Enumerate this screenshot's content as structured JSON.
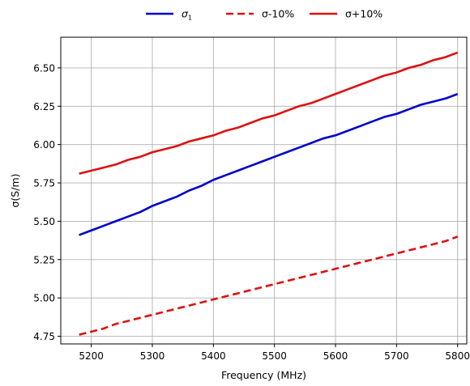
{
  "chart_data": {
    "type": "line",
    "xlabel": "Frequency (MHz)",
    "ylabel": "σ(S/m)",
    "xlim": [
      5150,
      5815
    ],
    "ylim": [
      4.7,
      6.7
    ],
    "grid": true,
    "legend_position": "top-center, above the plot",
    "x_ticks": [
      5200,
      5300,
      5400,
      5500,
      5600,
      5700,
      5800
    ],
    "x_tick_labels": [
      "5200",
      "5300",
      "5400",
      "5500",
      "5600",
      "5700",
      "5800"
    ],
    "y_ticks": [
      4.75,
      5.0,
      5.25,
      5.5,
      5.75,
      6.0,
      6.25,
      6.5
    ],
    "y_tick_labels": [
      "4.75",
      "5.00",
      "5.25",
      "5.50",
      "5.75",
      "6.00",
      "6.25",
      "6.50"
    ],
    "x": [
      5180,
      5200,
      5220,
      5240,
      5260,
      5280,
      5300,
      5320,
      5340,
      5360,
      5380,
      5400,
      5420,
      5440,
      5460,
      5480,
      5500,
      5520,
      5540,
      5560,
      5580,
      5600,
      5620,
      5640,
      5660,
      5680,
      5700,
      5720,
      5740,
      5760,
      5780,
      5800
    ],
    "series": [
      {
        "name": "σ1",
        "legend_main": "σ",
        "legend_sub": "1",
        "color": "#0000cc",
        "dash": "solid",
        "values": [
          5.41,
          5.44,
          5.47,
          5.5,
          5.53,
          5.56,
          5.6,
          5.63,
          5.66,
          5.7,
          5.73,
          5.77,
          5.8,
          5.83,
          5.86,
          5.89,
          5.92,
          5.95,
          5.98,
          6.01,
          6.04,
          6.06,
          6.09,
          6.12,
          6.15,
          6.18,
          6.2,
          6.23,
          6.26,
          6.28,
          6.3,
          6.33
        ]
      },
      {
        "name": "σ-10%",
        "legend_main": "σ-10%",
        "legend_sub": "",
        "color": "#dd1111",
        "dash": "dashed",
        "values": [
          4.76,
          4.78,
          4.8,
          4.83,
          4.85,
          4.87,
          4.89,
          4.91,
          4.93,
          4.95,
          4.97,
          4.99,
          5.01,
          5.03,
          5.05,
          5.07,
          5.09,
          5.11,
          5.13,
          5.15,
          5.17,
          5.19,
          5.21,
          5.23,
          5.25,
          5.27,
          5.29,
          5.31,
          5.33,
          5.35,
          5.37,
          5.4
        ]
      },
      {
        "name": "σ+10%",
        "legend_main": "σ+10%",
        "legend_sub": "",
        "color": "#dd1111",
        "dash": "solid",
        "values": [
          5.81,
          5.83,
          5.85,
          5.87,
          5.9,
          5.92,
          5.95,
          5.97,
          5.99,
          6.02,
          6.04,
          6.06,
          6.09,
          6.11,
          6.14,
          6.17,
          6.19,
          6.22,
          6.25,
          6.27,
          6.3,
          6.33,
          6.36,
          6.39,
          6.42,
          6.45,
          6.47,
          6.5,
          6.52,
          6.55,
          6.57,
          6.6
        ]
      }
    ]
  }
}
